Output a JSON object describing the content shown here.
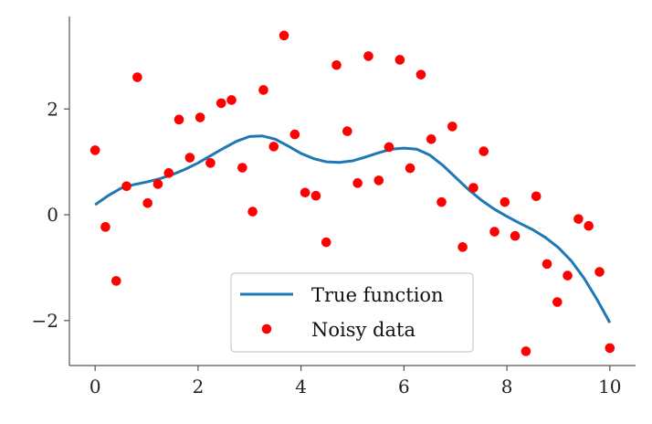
{
  "chart_data": {
    "type": "line+scatter",
    "xlim": [
      -0.5,
      10.5
    ],
    "ylim": [
      -2.85,
      3.75
    ],
    "x_ticks": [
      0,
      2,
      4,
      6,
      8,
      10
    ],
    "y_ticks": [
      -2,
      0,
      2
    ],
    "y_tick_labels": [
      "−2",
      "0",
      "2"
    ],
    "grid": false,
    "legend_position": "bottom-center",
    "series": [
      {
        "name": "True function",
        "kind": "line",
        "color": "#1f77b4",
        "x": [
          0,
          0.25,
          0.5,
          0.75,
          1.0,
          1.25,
          1.5,
          1.75,
          2.0,
          2.25,
          2.5,
          2.75,
          3.0,
          3.25,
          3.5,
          3.75,
          4.0,
          4.25,
          4.5,
          4.75,
          5.0,
          5.25,
          5.5,
          5.75,
          6.0,
          6.25,
          6.5,
          6.75,
          7.0,
          7.25,
          7.5,
          7.75,
          8.0,
          8.25,
          8.5,
          8.75,
          9.0,
          9.25,
          9.5,
          9.75,
          10.0
        ],
        "y": [
          0.19,
          0.36,
          0.5,
          0.57,
          0.62,
          0.68,
          0.76,
          0.86,
          0.98,
          1.12,
          1.26,
          1.39,
          1.48,
          1.49,
          1.43,
          1.3,
          1.16,
          1.06,
          1.0,
          0.99,
          1.02,
          1.09,
          1.17,
          1.24,
          1.26,
          1.24,
          1.13,
          0.94,
          0.71,
          0.48,
          0.28,
          0.11,
          -0.03,
          -0.16,
          -0.28,
          -0.43,
          -0.62,
          -0.87,
          -1.2,
          -1.6,
          -2.04
        ]
      },
      {
        "name": "Noisy data",
        "kind": "scatter",
        "color": "#ff0000",
        "x": [
          0.0,
          0.2,
          0.41,
          0.61,
          0.82,
          1.02,
          1.22,
          1.43,
          1.63,
          1.84,
          2.04,
          2.24,
          2.45,
          2.65,
          2.86,
          3.06,
          3.27,
          3.47,
          3.67,
          3.88,
          4.08,
          4.29,
          4.49,
          4.69,
          4.9,
          5.1,
          5.31,
          5.51,
          5.71,
          5.92,
          6.12,
          6.33,
          6.53,
          6.73,
          6.94,
          7.14,
          7.35,
          7.55,
          7.76,
          7.96,
          8.16,
          8.37,
          8.57,
          8.78,
          8.98,
          9.18,
          9.39,
          9.59,
          9.8,
          10.0
        ],
        "y": [
          1.22,
          -0.23,
          -1.25,
          0.54,
          2.6,
          0.22,
          0.58,
          0.79,
          1.8,
          1.08,
          1.84,
          0.98,
          2.11,
          2.17,
          0.89,
          0.06,
          2.36,
          1.29,
          3.39,
          1.52,
          0.42,
          0.36,
          -0.52,
          2.83,
          1.58,
          0.6,
          3.0,
          0.65,
          1.28,
          2.93,
          0.88,
          2.65,
          1.43,
          0.24,
          1.67,
          -0.61,
          0.51,
          1.2,
          -0.32,
          0.24,
          -0.4,
          -2.58,
          0.35,
          -0.93,
          -1.65,
          -1.15,
          -0.08,
          -0.21,
          -1.08,
          -2.52
        ]
      }
    ]
  }
}
